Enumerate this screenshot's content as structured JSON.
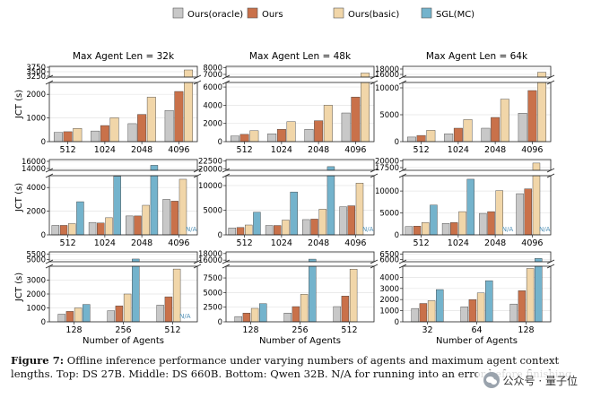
{
  "legend": [
    {
      "label": "Ours(oracle)",
      "color": "#c8c8c8"
    },
    {
      "label": "Ours",
      "color": "#c9714a"
    },
    {
      "label": "Ours(basic)",
      "color": "#f1d6a9"
    },
    {
      "label": "SGL(MC)",
      "color": "#74b3cc"
    }
  ],
  "caption": {
    "label": "Figure 7:",
    "text": "Offline inference performance under varying numbers of agents and maximum agent context lengths. Top: DS 27B. Middle: DS 660B. Bottom: Qwen 32B. N/A for running into an error before finishing."
  },
  "watermark": {
    "text": "公众号 · 量子位"
  },
  "chart_data": [
    {
      "type": "bar",
      "title": "Max Agent Len = 32k",
      "ylabel": "JCT (s)",
      "xlabel": "",
      "categories": [
        "512",
        "1024",
        "2048",
        "4096"
      ],
      "upper_ticks": [
        "3750",
        "3500",
        "3250"
      ],
      "lower_ticks": [
        "0",
        "1000",
        "2000"
      ],
      "series": [
        {
          "name": "Ours(oracle)",
          "values": [
            390,
            450,
            760,
            1320
          ]
        },
        {
          "name": "Ours",
          "values": [
            420,
            680,
            1150,
            2120
          ]
        },
        {
          "name": "Ours(basic)",
          "values": [
            560,
            1010,
            1880,
            3600
          ]
        }
      ]
    },
    {
      "type": "bar",
      "title": "Max Agent Len = 48k",
      "ylabel": "",
      "xlabel": "",
      "categories": [
        "512",
        "1024",
        "2048",
        "4096"
      ],
      "upper_ticks": [
        "8000",
        "7000"
      ],
      "lower_ticks": [
        "0",
        "2000",
        "4000",
        "6000"
      ],
      "series": [
        {
          "name": "Ours(oracle)",
          "values": [
            620,
            860,
            1350,
            3150
          ]
        },
        {
          "name": "Ours",
          "values": [
            800,
            1350,
            2300,
            4900
          ]
        },
        {
          "name": "Ours(basic)",
          "values": [
            1200,
            2200,
            4000,
            7200
          ]
        }
      ]
    },
    {
      "type": "bar",
      "title": "Max Agent Len = 64k",
      "ylabel": "",
      "xlabel": "",
      "categories": [
        "512",
        "1024",
        "2048",
        "4096"
      ],
      "upper_ticks": [
        "18000",
        "16000"
      ],
      "lower_ticks": [
        "0",
        "5000",
        "10000"
      ],
      "series": [
        {
          "name": "Ours(oracle)",
          "values": [
            850,
            1450,
            2500,
            5300
          ]
        },
        {
          "name": "Ours",
          "values": [
            1150,
            2500,
            4500,
            9500
          ]
        },
        {
          "name": "Ours(basic)",
          "values": [
            2100,
            4100,
            7900,
            16800
          ]
        }
      ]
    },
    {
      "type": "bar",
      "title": "",
      "ylabel": "JCT (s)",
      "xlabel": "",
      "categories": [
        "512",
        "1024",
        "2048",
        "4096"
      ],
      "upper_ticks": [
        "16000",
        "14000"
      ],
      "lower_ticks": [
        "0",
        "2000",
        "4000"
      ],
      "annotations": [
        "N/A"
      ],
      "series": [
        {
          "name": "Ours(oracle)",
          "values": [
            800,
            1050,
            1600,
            3000
          ]
        },
        {
          "name": "Ours",
          "values": [
            800,
            1000,
            1600,
            2850
          ]
        },
        {
          "name": "Ours(basic)",
          "values": [
            950,
            1450,
            2500,
            4700
          ]
        },
        {
          "name": "SGL(MC)",
          "values": [
            2800,
            4950,
            14900,
            null
          ]
        }
      ]
    },
    {
      "type": "bar",
      "title": "",
      "ylabel": "",
      "xlabel": "",
      "categories": [
        "512",
        "1024",
        "2048",
        "4096"
      ],
      "upper_ticks": [
        "22500",
        "20000"
      ],
      "lower_ticks": [
        "0",
        "5000",
        "10000"
      ],
      "annotations": [
        "N/A"
      ],
      "series": [
        {
          "name": "Ours(oracle)",
          "values": [
            1400,
            1900,
            3100,
            5700
          ]
        },
        {
          "name": "Ours",
          "values": [
            1500,
            1900,
            3200,
            5900
          ]
        },
        {
          "name": "Ours(basic)",
          "values": [
            2000,
            3000,
            5200,
            10500
          ]
        },
        {
          "name": "SGL(MC)",
          "values": [
            4600,
            8700,
            20700,
            null
          ]
        }
      ]
    },
    {
      "type": "bar",
      "title": "",
      "ylabel": "",
      "xlabel": "",
      "categories": [
        "512",
        "1024",
        "2048",
        "4096"
      ],
      "upper_ticks": [
        "20000",
        "17500"
      ],
      "lower_ticks": [
        "0",
        "5000",
        "10000"
      ],
      "annotations": [
        "N/A",
        "N/A"
      ],
      "series": [
        {
          "name": "Ours(oracle)",
          "values": [
            1900,
            2600,
            4900,
            9400
          ]
        },
        {
          "name": "Ours",
          "values": [
            2000,
            2800,
            5300,
            10500
          ]
        },
        {
          "name": "Ours(basic)",
          "values": [
            2800,
            5300,
            10100,
            19200
          ]
        },
        {
          "name": "SGL(MC)",
          "values": [
            6800,
            12700,
            null,
            null
          ]
        }
      ]
    },
    {
      "type": "bar",
      "title": "",
      "ylabel": "JCT (s)",
      "xlabel": "Number of Agents",
      "categories": [
        "128",
        "256",
        "512"
      ],
      "upper_ticks": [
        "5500",
        "5000"
      ],
      "lower_ticks": [
        "0",
        "1000",
        "2000",
        "3000"
      ],
      "annotations": [
        "N/A"
      ],
      "series": [
        {
          "name": "Ours(oracle)",
          "values": [
            550,
            800,
            1200
          ]
        },
        {
          "name": "Ours",
          "values": [
            750,
            1150,
            1800
          ]
        },
        {
          "name": "Ours(basic)",
          "values": [
            1000,
            2000,
            3800
          ]
        },
        {
          "name": "SGL(MC)",
          "values": [
            1250,
            5050,
            null
          ]
        }
      ]
    },
    {
      "type": "bar",
      "title": "",
      "ylabel": "",
      "xlabel": "Number of Agents",
      "categories": [
        "128",
        "256",
        "512"
      ],
      "upper_ticks": [
        "18000",
        "16000"
      ],
      "lower_ticks": [
        "0",
        "2500",
        "5000",
        "7500"
      ],
      "series": [
        {
          "name": "Ours(oracle)",
          "values": [
            900,
            1500,
            2600
          ]
        },
        {
          "name": "Ours",
          "values": [
            1500,
            2600,
            4400
          ]
        },
        {
          "name": "Ours(basic)",
          "values": [
            2300,
            4700,
            9000
          ]
        },
        {
          "name": "SGL(MC)",
          "values": [
            3100,
            16300,
            null
          ]
        }
      ]
    },
    {
      "type": "bar",
      "title": "",
      "ylabel": "",
      "xlabel": "Number of Agents",
      "categories": [
        "32",
        "64",
        "128"
      ],
      "upper_ticks": [
        "6500",
        "6000"
      ],
      "lower_ticks": [
        "0",
        "1000",
        "2000",
        "3000",
        "4000"
      ],
      "series": [
        {
          "name": "Ours(oracle)",
          "values": [
            1200,
            1350,
            1600
          ]
        },
        {
          "name": "Ours",
          "values": [
            1650,
            2000,
            2800
          ]
        },
        {
          "name": "Ours(basic)",
          "values": [
            1900,
            2600,
            4800
          ]
        },
        {
          "name": "SGL(MC)",
          "values": [
            2900,
            3700,
            6100
          ]
        }
      ]
    }
  ]
}
